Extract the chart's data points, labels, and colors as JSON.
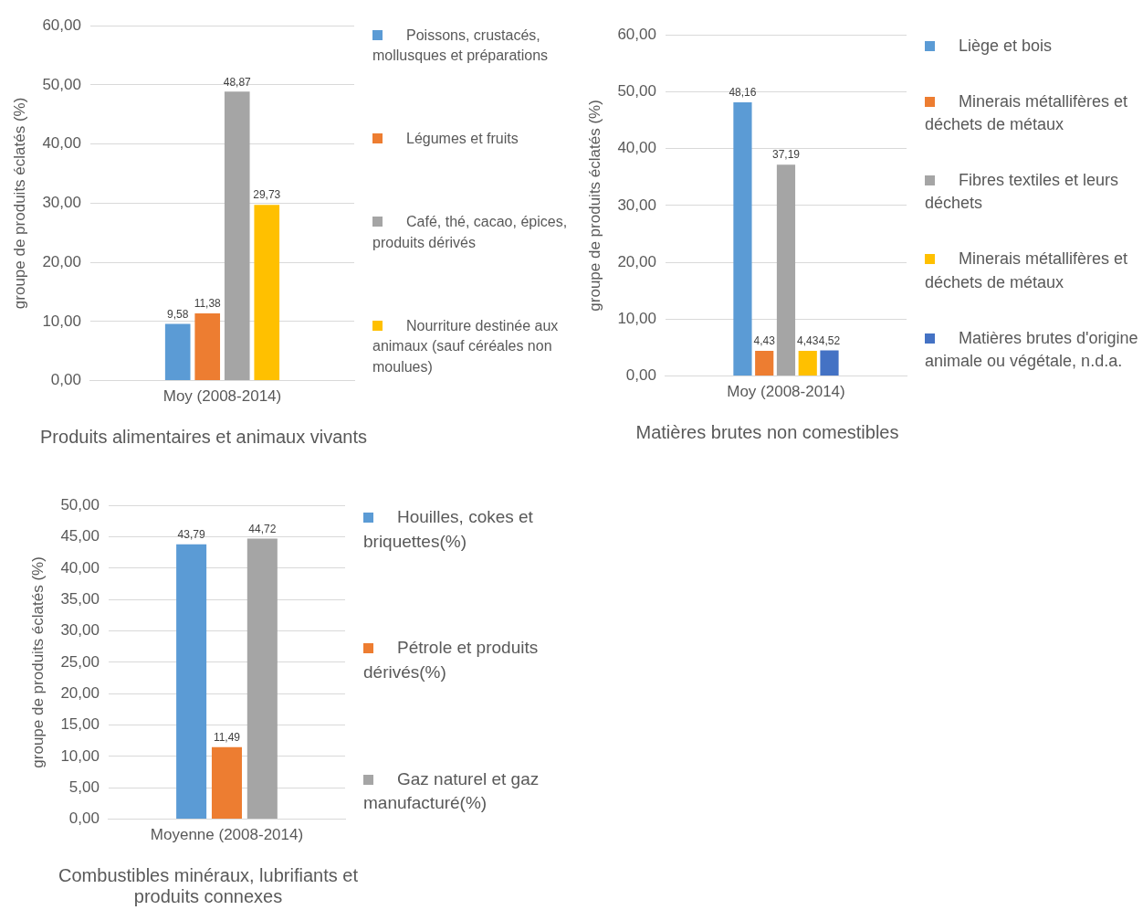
{
  "chart_data": [
    {
      "type": "bar",
      "title": "Produits alimentaires et animaux vivants",
      "ylabel": "groupe de produits éclatés (%)",
      "categories": [
        "Moy (2008-2014)"
      ],
      "grid": "y",
      "legend": "right",
      "ylim": [
        0,
        60
      ],
      "yticks": [
        {
          "value": 0,
          "label": "0,00"
        },
        {
          "value": 10,
          "label": "10,00"
        },
        {
          "value": 20,
          "label": "20,00"
        },
        {
          "value": 30,
          "label": "30,00"
        },
        {
          "value": 40,
          "label": "40,00"
        },
        {
          "value": 50,
          "label": "50,00"
        },
        {
          "value": 60,
          "label": "60,00"
        }
      ],
      "series": [
        {
          "name": "Poissons, crustacés, mollusques et préparations",
          "color": "#5b9bd5",
          "values": [
            9.58
          ],
          "value_labels": [
            "9,58"
          ]
        },
        {
          "name": "Légumes et fruits",
          "color": "#ed7d31",
          "values": [
            11.38
          ],
          "value_labels": [
            "11,38"
          ]
        },
        {
          "name": "Café, thé, cacao, épices, produits dérivés",
          "color": "#a5a5a5",
          "values": [
            48.87
          ],
          "value_labels": [
            "48,87"
          ]
        },
        {
          "name": "Nourriture destinée aux animaux (sauf céréales non moulues)",
          "color": "#ffc000",
          "values": [
            29.73
          ],
          "value_labels": [
            "29,73"
          ]
        }
      ]
    },
    {
      "type": "bar",
      "title": "Matières brutes non comestibles",
      "ylabel": "groupe de produits éclatés (%)",
      "categories": [
        "Moy (2008-2014)"
      ],
      "grid": "y",
      "legend": "right",
      "ylim": [
        0,
        60
      ],
      "yticks": [
        {
          "value": 0,
          "label": "0,00"
        },
        {
          "value": 10,
          "label": "10,00"
        },
        {
          "value": 20,
          "label": "20,00"
        },
        {
          "value": 30,
          "label": "30,00"
        },
        {
          "value": 40,
          "label": "40,00"
        },
        {
          "value": 50,
          "label": "50,00"
        },
        {
          "value": 60,
          "label": "60,00"
        }
      ],
      "series": [
        {
          "name": "Liège et bois",
          "color": "#5b9bd5",
          "values": [
            48.16
          ],
          "value_labels": [
            "48,16"
          ]
        },
        {
          "name": "Minerais métallifères et déchets de métaux",
          "color": "#ed7d31",
          "values": [
            4.43
          ],
          "value_labels": [
            "4,43"
          ]
        },
        {
          "name": "Fibres textiles et leurs déchets",
          "color": "#a5a5a5",
          "values": [
            37.19
          ],
          "value_labels": [
            "37,19"
          ]
        },
        {
          "name": "Minerais métallifères et déchets de métaux",
          "color": "#ffc000",
          "values": [
            4.43
          ],
          "value_labels": [
            "4,43"
          ]
        },
        {
          "name": "Matières brutes d'origine animale ou végétale, n.d.a.",
          "color": "#4472c4",
          "values": [
            4.52
          ],
          "value_labels": [
            "4,52"
          ]
        }
      ]
    },
    {
      "type": "bar",
      "title": "Combustibles minéraux, lubrifiants et produits connexes",
      "ylabel": "groupe de produits éclatés (%)",
      "categories": [
        "Moyenne (2008-2014)"
      ],
      "grid": "y",
      "legend": "right",
      "ylim": [
        0,
        50
      ],
      "yticks": [
        {
          "value": 0,
          "label": "0,00"
        },
        {
          "value": 5,
          "label": "5,00"
        },
        {
          "value": 10,
          "label": "10,00"
        },
        {
          "value": 15,
          "label": "15,00"
        },
        {
          "value": 20,
          "label": "20,00"
        },
        {
          "value": 25,
          "label": "25,00"
        },
        {
          "value": 30,
          "label": "30,00"
        },
        {
          "value": 35,
          "label": "35,00"
        },
        {
          "value": 40,
          "label": "40,00"
        },
        {
          "value": 45,
          "label": "45,00"
        },
        {
          "value": 50,
          "label": "50,00"
        }
      ],
      "series": [
        {
          "name": "Houilles, cokes et briquettes(%)",
          "color": "#5b9bd5",
          "values": [
            43.79
          ],
          "value_labels": [
            "43,79"
          ]
        },
        {
          "name": "Pétrole et produits dérivés(%)",
          "color": "#ed7d31",
          "values": [
            11.49
          ],
          "value_labels": [
            "11,49"
          ]
        },
        {
          "name": "Gaz naturel et gaz manufacturé(%)",
          "color": "#a5a5a5",
          "values": [
            44.72
          ],
          "value_labels": [
            "44,72"
          ]
        }
      ]
    }
  ]
}
